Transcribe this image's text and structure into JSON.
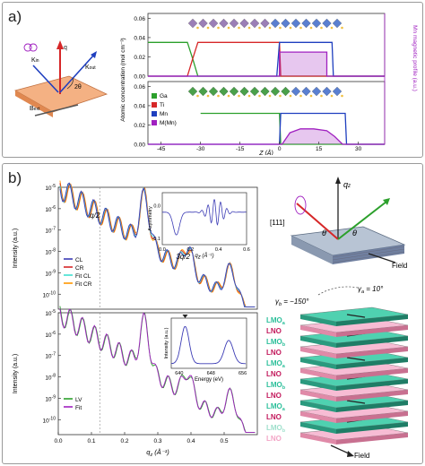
{
  "panel_a": {
    "label": "a)",
    "geometry": {
      "q_label": "q",
      "k_in_label": "K",
      "k_in_sub": "in",
      "k_out_label": "K",
      "k_out_sub": "out",
      "two_theta_label": "2θ",
      "b_label": "B",
      "b_sub": "ext"
    }
  },
  "panel_b": {
    "label": "b)",
    "top": {
      "annotations": {
        "q2": "q/2",
        "q32": "3q/2"
      }
    },
    "inset_top": {
      "ylabel": "Asymmetry"
    },
    "bottom": {},
    "inset_bottom": {
      "ylabel": "Intensity (a.u.)",
      "xlabel": "Energy (eV)"
    },
    "geometry": {
      "plane_label": "[111]",
      "theta1": "θ",
      "theta2": "θ",
      "qz_label": "q",
      "qz_sub": "z",
      "field_label": "Field"
    },
    "stack": {
      "gamma_a": "γ",
      "gamma_a_sub": "a",
      "gamma_a_val": " = 10°",
      "gamma_b": "γ",
      "gamma_b_sub": "b",
      "gamma_b_val": " = −150°",
      "layers": [
        {
          "text": "LMO",
          "sub": "a",
          "color": "#2bbf9a"
        },
        {
          "text": "LNO",
          "sub": "",
          "color": "#c2185b"
        },
        {
          "text": "LMO",
          "sub": "b",
          "color": "#2bbf9a"
        },
        {
          "text": "LNO",
          "sub": "",
          "color": "#c2185b"
        },
        {
          "text": "LMO",
          "sub": "a",
          "color": "#2bbf9a"
        },
        {
          "text": "LNO",
          "sub": "",
          "color": "#c2185b"
        },
        {
          "text": "LMO",
          "sub": "b",
          "color": "#2bbf9a"
        },
        {
          "text": "LNO",
          "sub": "",
          "color": "#c2185b"
        },
        {
          "text": "LMO",
          "sub": "a",
          "color": "#2bbf9a"
        },
        {
          "text": "LNO",
          "sub": "",
          "color": "#c2185b"
        },
        {
          "text": "LMO",
          "sub": "b",
          "color": "#9fe0cc"
        },
        {
          "text": "LNO",
          "sub": "",
          "color": "#f3a5c6"
        }
      ],
      "field_label": "Field"
    }
  },
  "chart_data": [
    {
      "id": "a-top",
      "type": "line",
      "xlabel": "",
      "ylabel": "Atomic concentration (mol cm⁻³)",
      "ylabel2": "Mn magnetic profile (a.u.)",
      "xlim": [
        -50,
        40
      ],
      "ylim": [
        0,
        0.065
      ],
      "yticks": [
        0.0,
        0.02,
        0.04,
        0.06
      ],
      "series": [
        {
          "name": "",
          "color": "#2ca02c",
          "x": [
            -50,
            -35,
            -33,
            -31,
            40
          ],
          "y": [
            0.035,
            0.035,
            0.018,
            0,
            0
          ]
        },
        {
          "name": "",
          "color": "#d62728",
          "x": [
            -50,
            -35,
            -33,
            -31,
            0,
            0.5,
            40
          ],
          "y": [
            0,
            0,
            0.018,
            0.035,
            0.035,
            0,
            0
          ]
        },
        {
          "name": "",
          "color": "#1f3fbf",
          "x": [
            -50,
            -1,
            0,
            20,
            20.5,
            40
          ],
          "y": [
            0,
            0,
            0.035,
            0.035,
            0,
            0
          ]
        },
        {
          "name": "",
          "color": "#a020c0",
          "fill": true,
          "x": [
            -50,
            0,
            0,
            18,
            18,
            40
          ],
          "y": [
            0,
            0,
            0.025,
            0.025,
            0,
            0
          ]
        }
      ]
    },
    {
      "id": "a-bottom",
      "type": "line",
      "xlabel": "Z (Å)",
      "ylabel": "",
      "xlim": [
        -50,
        40
      ],
      "ylim": [
        0,
        0.065
      ],
      "xticks": [
        -45,
        -30,
        -15,
        0,
        15,
        30
      ],
      "yticks": [
        0.0,
        0.02,
        0.04,
        0.06
      ],
      "legend": [
        {
          "label": "Ga",
          "color": "#2ca02c"
        },
        {
          "label": "Ti",
          "color": "#d62728"
        },
        {
          "label": "Mn",
          "color": "#1f3fbf"
        },
        {
          "label": "M(Mn)",
          "color": "#a020c0"
        }
      ],
      "series": [
        {
          "name": "Ga",
          "color": "#2ca02c",
          "x": [
            -30,
            0,
            0.5,
            40
          ],
          "y": [
            0.032,
            0.032,
            0,
            0
          ]
        },
        {
          "name": "Mn",
          "color": "#1f3fbf",
          "x": [
            -50,
            0,
            0.5,
            25,
            25.5,
            40
          ],
          "y": [
            0,
            0,
            0.032,
            0.032,
            0,
            0
          ]
        },
        {
          "name": "M(Mn)",
          "color": "#a020c0",
          "fill": true,
          "x": [
            -50,
            1,
            4,
            8,
            13,
            18,
            21,
            24,
            40
          ],
          "y": [
            0,
            0,
            0.012,
            0.016,
            0.016,
            0.014,
            0.008,
            0,
            0
          ]
        }
      ]
    },
    {
      "id": "b-top",
      "type": "line",
      "log_y": true,
      "xlabel": "",
      "ylabel": "Intensity (a.u.)",
      "xlim": [
        0,
        0.6
      ],
      "ylim_exp": [
        -10.7,
        -5
      ],
      "yticks_exp": [
        -10,
        -9,
        -8,
        -7,
        -6,
        -5
      ],
      "legend": [
        {
          "label": "CL",
          "color": "#3b3bb5"
        },
        {
          "label": "CR",
          "color": "#d62728"
        },
        {
          "label": "Fit CL",
          "color": "#40e0d0"
        },
        {
          "label": "Fit CR",
          "color": "#ff9800"
        }
      ],
      "series": [
        {
          "name": "CL",
          "color": "#3b3bb5"
        },
        {
          "name": "CR",
          "color": "#d62728"
        },
        {
          "name": "Fit CL",
          "color": "#40e0d0"
        },
        {
          "name": "Fit CR",
          "color": "#ff9800"
        }
      ]
    },
    {
      "id": "b-top-inset",
      "type": "line",
      "xlabel": "q",
      "xlabel_sub": "z",
      "xlabel_unit": " (Å⁻¹)",
      "ylabel": "Asymmetry",
      "xlim": [
        0,
        0.6
      ],
      "ylim": [
        -0.12,
        0.04
      ],
      "xticks": [
        0.0,
        0.2,
        0.4,
        0.6
      ],
      "yticks": [
        0.0,
        -0.1
      ]
    },
    {
      "id": "b-bottom",
      "type": "line",
      "log_y": true,
      "xlabel": "q",
      "xlabel_sub": "z",
      "xlabel_unit": " (Å⁻¹)",
      "ylabel": "Intensity (a.u.)",
      "xlim": [
        0,
        0.6
      ],
      "ylim_exp": [
        -10.7,
        -5
      ],
      "xticks": [
        0.0,
        0.1,
        0.2,
        0.3,
        0.4,
        0.5
      ],
      "yticks_exp": [
        -10,
        -9,
        -8,
        -7,
        -6,
        -5
      ],
      "legend": [
        {
          "label": "LV",
          "color": "#2ca02c"
        },
        {
          "label": "Fit",
          "color": "#a020c0"
        }
      ]
    },
    {
      "id": "b-bottom-inset",
      "type": "line",
      "xlabel": "Energy (eV)",
      "ylabel": "Intensity (a.u.)",
      "xlim": [
        638,
        657
      ],
      "xticks": [
        640,
        648,
        656
      ]
    }
  ]
}
